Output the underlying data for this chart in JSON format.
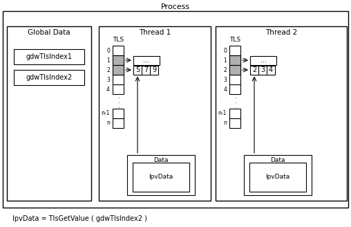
{
  "title": "Process",
  "global_data_label": "Global Data",
  "global_indices": [
    "gdwTlsIndex1",
    "gdwTlsIndex2"
  ],
  "thread1_label": "Thread 1",
  "thread2_label": "Thread 2",
  "tls_label": "TLS",
  "tls_rows": [
    "0",
    "1",
    "2",
    "3",
    "4",
    ".",
    ".",
    ".",
    "n-1",
    "n"
  ],
  "thread1_data_values": [
    "5",
    "7",
    "9"
  ],
  "thread2_data_values": [
    "2",
    "3",
    "4"
  ],
  "data_box_label": "Data",
  "ipvdata_label": "IpvData",
  "footer": "IpvData = TlsGetValue ( gdwTlsIndex2 )",
  "bg_color": "#ffffff",
  "gray_fill": "#b0b0b0"
}
